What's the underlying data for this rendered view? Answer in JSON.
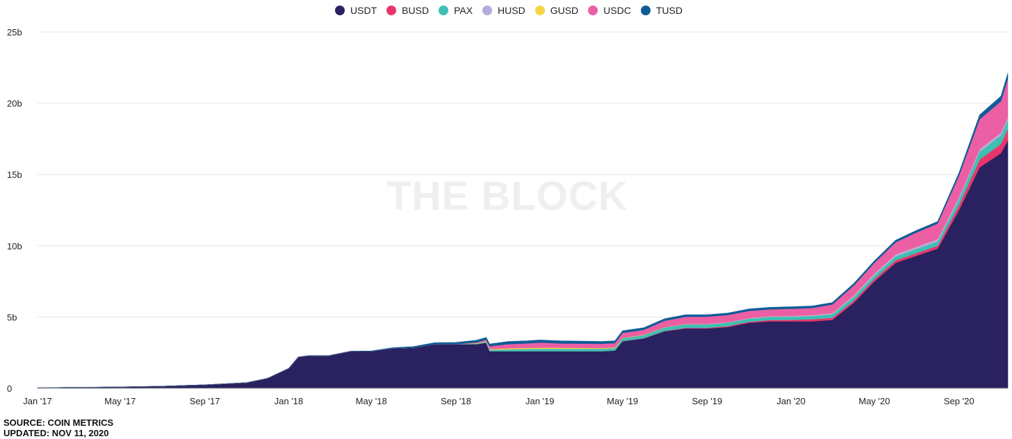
{
  "chart_data": {
    "type": "area",
    "stacked": true,
    "x_axis": {
      "ticks": [
        "Jan '17",
        "May '17",
        "Sep '17",
        "Jan '18",
        "May '18",
        "Sep '18",
        "Jan '19",
        "May '19",
        "Sep '19",
        "Jan '20",
        "May '20",
        "Sep '20"
      ]
    },
    "y_axis": {
      "ticks": [
        "0",
        "5b",
        "10b",
        "15b",
        "20b",
        "25b"
      ],
      "ylim": [
        0,
        25
      ],
      "unit": "b"
    },
    "grid": true,
    "legend_position": "top-center",
    "x": [
      "2017-01-01",
      "2017-03-01",
      "2017-05-01",
      "2017-07-01",
      "2017-09-01",
      "2017-11-01",
      "2017-12-01",
      "2018-01-01",
      "2018-01-15",
      "2018-01-31",
      "2018-03-01",
      "2018-04-01",
      "2018-05-01",
      "2018-06-01",
      "2018-07-01",
      "2018-08-01",
      "2018-09-01",
      "2018-10-01",
      "2018-10-15",
      "2018-10-20",
      "2018-11-15",
      "2018-12-15",
      "2019-01-01",
      "2019-02-01",
      "2019-03-01",
      "2019-04-01",
      "2019-04-20",
      "2019-05-01",
      "2019-06-01",
      "2019-07-01",
      "2019-08-01",
      "2019-09-01",
      "2019-10-01",
      "2019-11-01",
      "2019-12-01",
      "2020-01-01",
      "2020-02-01",
      "2020-03-01",
      "2020-04-01",
      "2020-05-01",
      "2020-06-01",
      "2020-07-01",
      "2020-08-01",
      "2020-09-01",
      "2020-10-01",
      "2020-11-01",
      "2020-11-11"
    ],
    "series": [
      {
        "name": "USDT",
        "color": "#2a2160",
        "values": [
          0.05,
          0.07,
          0.1,
          0.15,
          0.25,
          0.4,
          0.7,
          1.4,
          2.2,
          2.3,
          2.3,
          2.6,
          2.6,
          2.8,
          2.85,
          3.1,
          3.1,
          3.1,
          3.2,
          2.6,
          2.6,
          2.6,
          2.6,
          2.6,
          2.6,
          2.6,
          2.65,
          3.3,
          3.5,
          4.0,
          4.2,
          4.2,
          4.3,
          4.6,
          4.7,
          4.7,
          4.7,
          4.8,
          6.0,
          7.5,
          8.8,
          9.3,
          9.8,
          12.5,
          15.5,
          16.5,
          17.4
        ]
      },
      {
        "name": "BUSD",
        "color": "#e8366b",
        "values": [
          0,
          0,
          0,
          0,
          0,
          0,
          0,
          0,
          0,
          0,
          0,
          0,
          0,
          0,
          0,
          0,
          0,
          0,
          0,
          0,
          0,
          0,
          0,
          0,
          0,
          0,
          0,
          0.01,
          0.02,
          0.02,
          0.04,
          0.04,
          0.06,
          0.07,
          0.09,
          0.1,
          0.15,
          0.15,
          0.15,
          0.17,
          0.18,
          0.18,
          0.2,
          0.35,
          0.55,
          0.65,
          0.8
        ]
      },
      {
        "name": "PAX",
        "color": "#3fbfb2",
        "values": [
          0,
          0,
          0,
          0,
          0,
          0,
          0,
          0,
          0,
          0,
          0,
          0,
          0,
          0,
          0,
          0,
          0,
          0.05,
          0.08,
          0.1,
          0.14,
          0.17,
          0.18,
          0.18,
          0.18,
          0.18,
          0.18,
          0.2,
          0.22,
          0.25,
          0.25,
          0.25,
          0.24,
          0.22,
          0.22,
          0.22,
          0.22,
          0.24,
          0.25,
          0.25,
          0.27,
          0.3,
          0.3,
          0.4,
          0.55,
          0.6,
          0.62
        ]
      },
      {
        "name": "HUSD",
        "color": "#b3acdc",
        "values": [
          0,
          0,
          0,
          0,
          0,
          0,
          0,
          0,
          0,
          0,
          0,
          0,
          0,
          0,
          0,
          0,
          0,
          0,
          0,
          0,
          0,
          0,
          0,
          0,
          0,
          0,
          0,
          0,
          0,
          0.01,
          0.02,
          0.02,
          0.03,
          0.03,
          0.04,
          0.05,
          0.06,
          0.08,
          0.1,
          0.12,
          0.14,
          0.14,
          0.15,
          0.16,
          0.17,
          0.18,
          0.18
        ]
      },
      {
        "name": "GUSD",
        "color": "#f5d547",
        "values": [
          0,
          0,
          0,
          0,
          0,
          0,
          0,
          0,
          0,
          0,
          0,
          0,
          0,
          0,
          0,
          0,
          0,
          0.02,
          0.03,
          0.05,
          0.06,
          0.07,
          0.08,
          0.07,
          0.06,
          0.05,
          0.04,
          0.03,
          0.02,
          0.01,
          0.01,
          0.01,
          0.01,
          0.01,
          0.01,
          0.01,
          0.01,
          0.01,
          0.01,
          0.01,
          0.01,
          0.01,
          0.01,
          0.01,
          0.01,
          0.01,
          0.01
        ]
      },
      {
        "name": "USDC",
        "color": "#ec5fa5",
        "values": [
          0,
          0,
          0,
          0,
          0,
          0,
          0,
          0,
          0,
          0,
          0,
          0,
          0,
          0,
          0,
          0,
          0,
          0.05,
          0.1,
          0.2,
          0.3,
          0.32,
          0.35,
          0.3,
          0.3,
          0.3,
          0.3,
          0.35,
          0.35,
          0.45,
          0.5,
          0.5,
          0.5,
          0.5,
          0.48,
          0.5,
          0.5,
          0.6,
          0.7,
          0.75,
          0.85,
          1.0,
          1.1,
          1.5,
          2.1,
          2.2,
          2.7
        ]
      },
      {
        "name": "TUSD",
        "color": "#0f5d96",
        "values": [
          0,
          0,
          0,
          0,
          0,
          0,
          0,
          0,
          0,
          0,
          0,
          0,
          0.02,
          0.05,
          0.08,
          0.1,
          0.12,
          0.15,
          0.16,
          0.16,
          0.18,
          0.18,
          0.18,
          0.18,
          0.17,
          0.16,
          0.16,
          0.15,
          0.14,
          0.14,
          0.14,
          0.14,
          0.14,
          0.14,
          0.14,
          0.14,
          0.14,
          0.14,
          0.14,
          0.14,
          0.14,
          0.14,
          0.14,
          0.2,
          0.3,
          0.35,
          0.4
        ]
      }
    ]
  },
  "watermark": "THE BLOCK",
  "footer": {
    "source": "SOURCE: COIN METRICS",
    "updated": "UPDATED: NOV 11, 2020"
  }
}
